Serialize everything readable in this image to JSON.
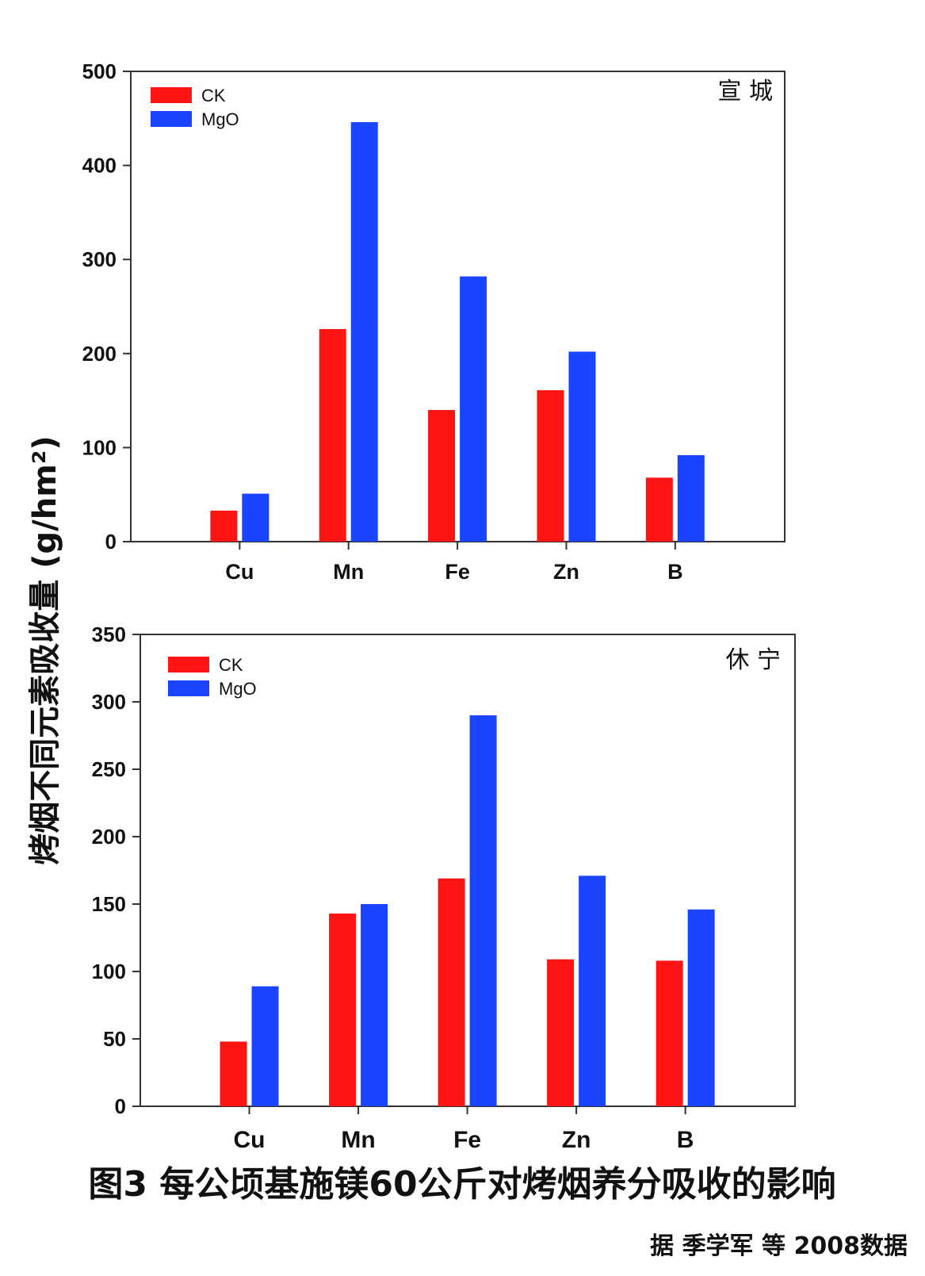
{
  "figure": {
    "ylabel": "烤烟不同元素吸收量 (g/hm²)",
    "caption": "图3 每公顷基施镁60公斤对烤烟养分吸收的影响",
    "source": "据  季学军 等 2008数据"
  },
  "colors": {
    "CK": "#ff1414",
    "MgO": "#1a44ff"
  },
  "chart_data": [
    {
      "type": "bar",
      "site": "宣 城",
      "categories": [
        "Cu",
        "Mn",
        "Fe",
        "Zn",
        "B"
      ],
      "series": [
        {
          "name": "CK",
          "values": [
            33,
            226,
            140,
            161,
            68
          ]
        },
        {
          "name": "MgO",
          "values": [
            51,
            446,
            282,
            202,
            92
          ]
        }
      ],
      "ylim": [
        0,
        500
      ],
      "yticks": [
        0,
        100,
        200,
        300,
        400,
        500
      ],
      "legend": "top-left",
      "grid": false
    },
    {
      "type": "bar",
      "site": "休 宁",
      "categories": [
        "Cu",
        "Mn",
        "Fe",
        "Zn",
        "B"
      ],
      "series": [
        {
          "name": "CK",
          "values": [
            48,
            143,
            169,
            109,
            108
          ]
        },
        {
          "name": "MgO",
          "values": [
            89,
            150,
            290,
            171,
            146
          ]
        }
      ],
      "ylim": [
        0,
        350
      ],
      "yticks": [
        0,
        50,
        100,
        150,
        200,
        250,
        300,
        350
      ],
      "legend": "top-left",
      "grid": false
    }
  ]
}
